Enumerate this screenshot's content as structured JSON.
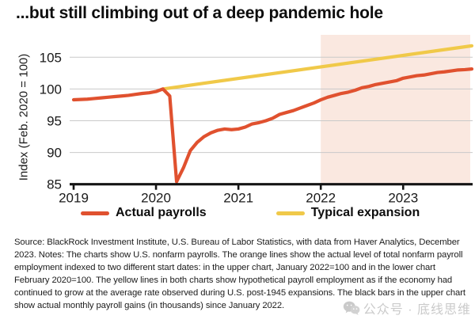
{
  "title": "...but still climbing out of a deep pandemic hole",
  "legend": [
    {
      "label": "Actual payrolls",
      "color": "#E0512F"
    },
    {
      "label": "Typical expansion",
      "color": "#F0C949"
    }
  ],
  "footer": {
    "text": "Source: BlackRock Investment Institute, U.S. Bureau of Labor Statistics, with data from Haver Analytics, December 2023. Notes: The charts show U.S. nonfarm payrolls. The orange lines show the actual level of total nonfarm payroll employment indexed to two different start dates: in the upper chart, January 2022=100 and in the lower chart February 2020=100. The yellow lines in both charts show hypothetical payroll employment as if the economy had continued to grow at the average rate observed during U.S. post-1945 expansions. The black bars in the upper chart show actual monthly payroll gains (in thousands) since January 2022."
  },
  "watermark": {
    "icon": "wechat-icon",
    "text": "公众号 · 底线思维"
  },
  "chart_data": {
    "type": "line",
    "title": "",
    "xlabel": "",
    "ylabel": "Index (Feb. 2020 = 100)",
    "x_unit": "months since Jan 2019",
    "x_tick_labels": [
      "2019",
      "2020",
      "2021",
      "2022",
      "2023"
    ],
    "y_ticks": [
      85,
      90,
      95,
      100,
      105
    ],
    "ylim": [
      85,
      108.5
    ],
    "grid": true,
    "legend_position": "bottom",
    "colors": {
      "actual": "#E0512F",
      "typical": "#F0C949",
      "shade": "#FAE8E0",
      "gridline": "#c9c9c9",
      "axis": "#141414"
    },
    "shaded_region": {
      "from_month": 36,
      "label": "Jan 2022 onward",
      "color": "#FAE8E0"
    },
    "series": [
      {
        "name": "Actual payrolls",
        "color": "#E0512F",
        "start": "2019-01",
        "frequency": "monthly",
        "monthly_values": [
          98.3,
          98.35,
          98.4,
          98.5,
          98.6,
          98.7,
          98.8,
          98.9,
          99.0,
          99.15,
          99.3,
          99.4,
          99.6,
          100.0,
          98.9,
          85.4,
          87.6,
          90.3,
          91.6,
          92.5,
          93.1,
          93.5,
          93.7,
          93.6,
          93.7,
          94.0,
          94.5,
          94.7,
          95.0,
          95.4,
          96.0,
          96.3,
          96.6,
          97.0,
          97.4,
          97.8,
          98.3,
          98.7,
          99.0,
          99.3,
          99.5,
          99.8,
          100.2,
          100.4,
          100.7,
          100.9,
          101.1,
          101.3,
          101.7,
          101.9,
          102.1,
          102.2,
          102.4,
          102.6,
          102.7,
          102.85,
          103.0,
          103.05,
          103.15
        ]
      },
      {
        "name": "Typical expansion",
        "color": "#F0C949",
        "shape": "linear",
        "points": [
          [
            13,
            100
          ],
          [
            58,
            106.8
          ]
        ]
      }
    ]
  }
}
